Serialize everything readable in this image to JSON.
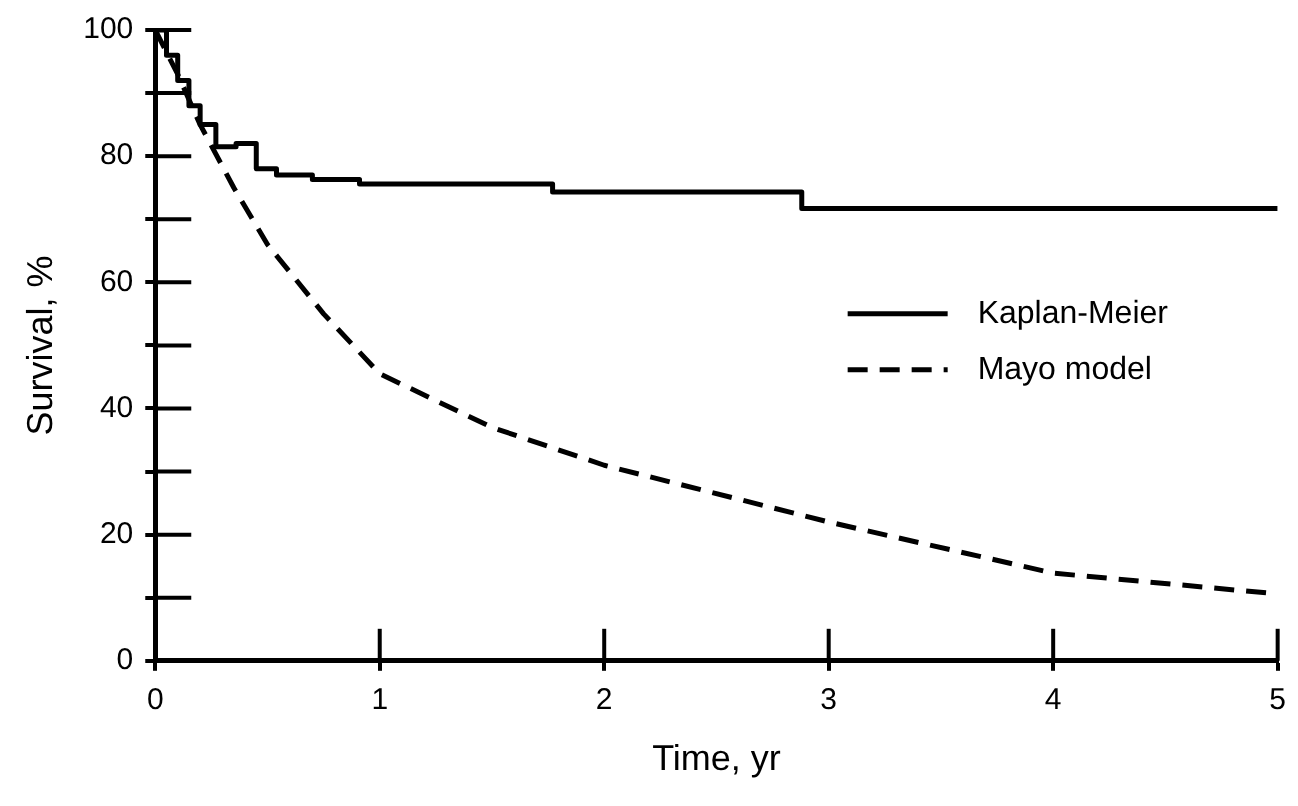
{
  "chart_data": {
    "type": "line",
    "xlabel": "Time, yr",
    "ylabel": "Survival, %",
    "xlim": [
      0,
      5
    ],
    "xticks": [
      0,
      1,
      2,
      3,
      4,
      5
    ],
    "ylim": [
      0,
      100
    ],
    "yticks": [
      0,
      {
        "value": 10,
        "label": null
      },
      20,
      {
        "value": 30,
        "label": null
      },
      40,
      {
        "value": 50,
        "label": null
      },
      60,
      {
        "value": 70,
        "label": null
      },
      80,
      {
        "value": 90,
        "label": null
      },
      100
    ],
    "grid": false,
    "legend": "right",
    "marker": "none",
    "series": [
      {
        "name": "Kaplan-Meier",
        "type": "step",
        "color": "#000000",
        "line_style": "solid",
        "x": [
          0,
          0.05,
          0.1,
          0.15,
          0.2,
          0.27,
          0.36,
          0.45,
          0.54,
          0.7,
          0.91,
          1.77,
          2.88,
          5
        ],
        "values": [
          100,
          96,
          92,
          88,
          85,
          81.5,
          82,
          78,
          77,
          76.3,
          75.6,
          74.3,
          71.7,
          71.7
        ]
      },
      {
        "name": "Mayo model",
        "type": "line",
        "color": "#000000",
        "line_style": "dashed",
        "x": [
          0,
          0.1,
          0.2,
          0.35,
          0.5,
          0.75,
          1,
          1.5,
          2,
          3,
          4,
          5
        ],
        "values": [
          100,
          93,
          85,
          75,
          66,
          55,
          45.5,
          37,
          31,
          22,
          13.9,
          10.6
        ]
      }
    ]
  }
}
